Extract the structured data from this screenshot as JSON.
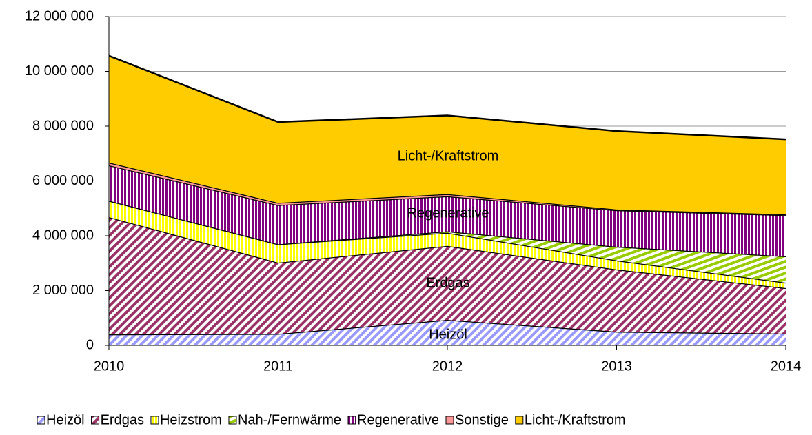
{
  "chart_data": {
    "type": "stacked_area",
    "x": [
      2010,
      2011,
      2012,
      2013,
      2014
    ],
    "xlim": [
      2010,
      2014
    ],
    "xticks": [
      2010,
      2011,
      2012,
      2013,
      2014
    ],
    "ylim": [
      0,
      12000000
    ],
    "yticks": [
      0,
      {
        "value": 2000000,
        "label": "2 000 000"
      },
      {
        "value": 4000000,
        "label": "4 000 000"
      },
      {
        "value": 6000000,
        "label": "6 000 000"
      },
      {
        "value": 8000000,
        "label": "8 000 000"
      },
      {
        "value": 10000000,
        "label": "10 000 000"
      },
      {
        "value": 12000000,
        "label": "12 000 000"
      }
    ],
    "grid": true,
    "legend": "bottom",
    "series": [
      {
        "name": "Heizöl",
        "color": "#9999ff",
        "pattern": "diagonal",
        "values": [
          400000,
          420000,
          930000,
          500000,
          430000
        ]
      },
      {
        "name": "Erdgas",
        "color": "#993366",
        "pattern": "diagonal",
        "values": [
          4280000,
          2600000,
          2700000,
          2270000,
          1660000
        ]
      },
      {
        "name": "Heizstrom",
        "color": "#ffff00",
        "pattern": "vertical",
        "values": [
          600000,
          670000,
          480000,
          330000,
          200000
        ]
      },
      {
        "name": "Nah-/Fernwärme",
        "color": "#99cc00",
        "pattern": "horizontal",
        "values": [
          0,
          0,
          50000,
          500000,
          960000
        ]
      },
      {
        "name": "Regenerative",
        "color": "#800080",
        "pattern": "vertical",
        "values": [
          1290000,
          1430000,
          1280000,
          1330000,
          1500000
        ]
      },
      {
        "name": "Sonstige",
        "color": "#ff9999",
        "pattern": "solid",
        "values": [
          100000,
          80000,
          80000,
          30000,
          30000
        ]
      },
      {
        "name": "Licht-/Kraftstrom",
        "color": "#ffcc00",
        "pattern": "solid",
        "values": [
          3900000,
          2950000,
          2870000,
          2860000,
          2740000
        ]
      }
    ],
    "annotations": [
      "Licht-/Kraftstrom",
      "Regenerative",
      "Erdgas",
      "Heizöl"
    ]
  }
}
